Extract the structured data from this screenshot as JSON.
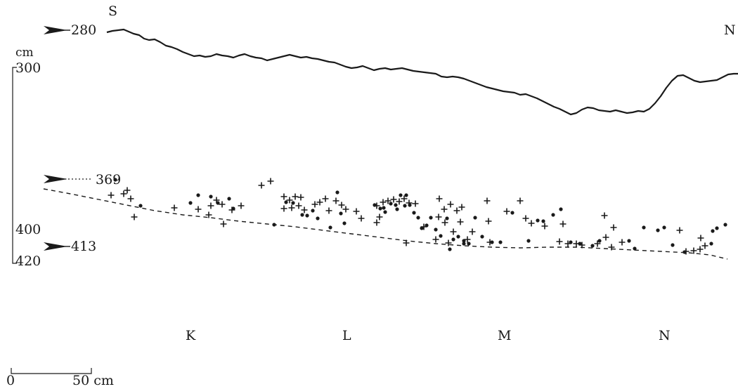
{
  "orientation": {
    "left": "S",
    "right": "N"
  },
  "depth_scale": {
    "unit": "cm",
    "top": "300",
    "bottom_mid": "400",
    "bottom": "420"
  },
  "markers": [
    {
      "label": "280",
      "depth_cm": 280
    },
    {
      "label": "369",
      "depth_cm": 369
    },
    {
      "label": "413",
      "depth_cm": 413
    }
  ],
  "squares": [
    "K",
    "L",
    "M",
    "N"
  ],
  "scale_bar": {
    "start": "0",
    "end": "50 cm",
    "length_cm": 50
  },
  "colors": {
    "ink": "#1a1a1a",
    "background": "#ffffff"
  },
  "legend_symbols": [
    "plus-find",
    "dot-find"
  ]
}
